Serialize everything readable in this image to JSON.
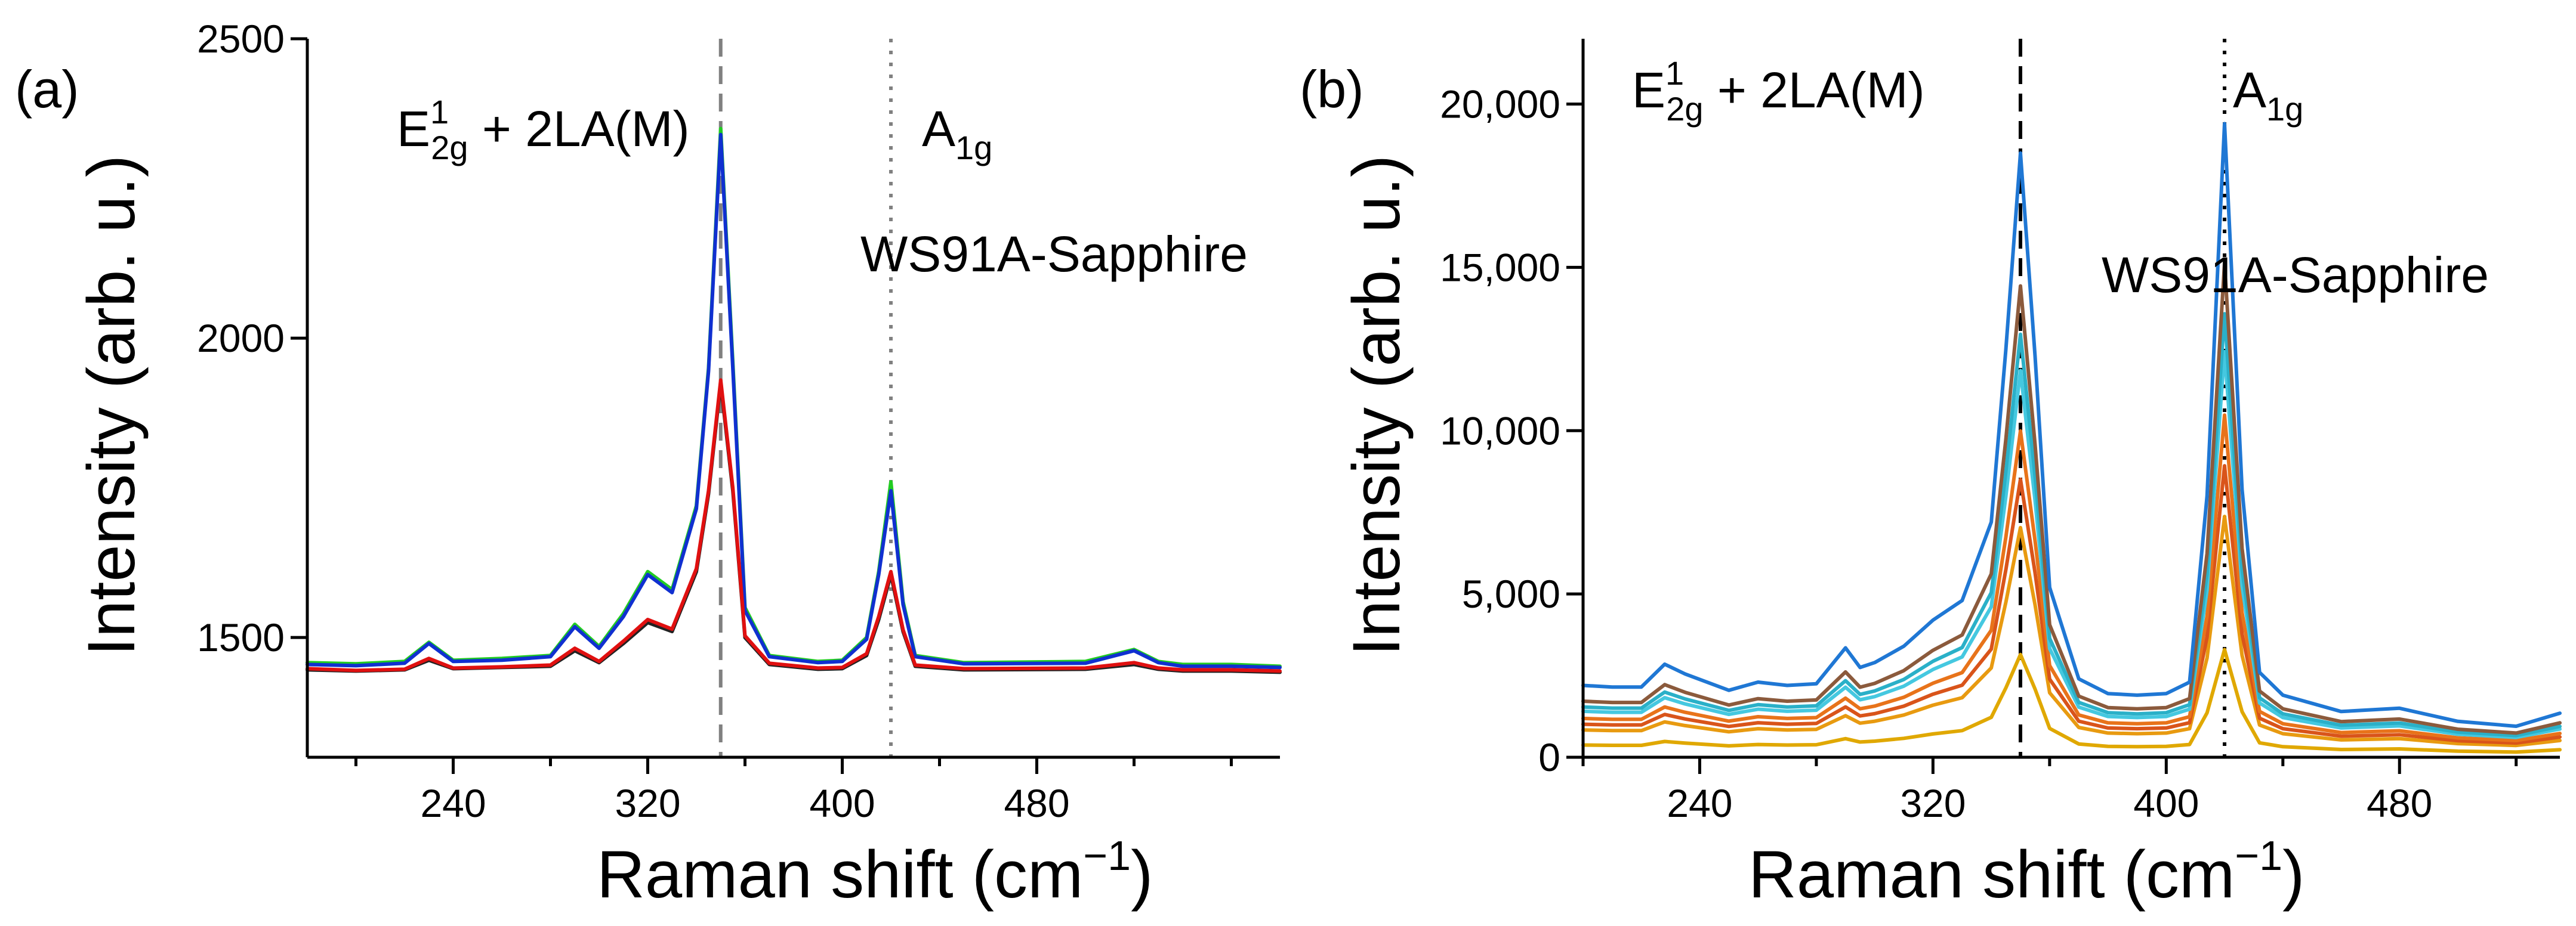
{
  "chart_data": [
    {
      "type": "line",
      "panel_label": "(a)",
      "xlabel_main": "Raman shift (cm",
      "xlabel_sup": "−1",
      "xlabel_close": ")",
      "ylabel": "Intensity (arb. u.)",
      "xlim": [
        180,
        580
      ],
      "ylim": [
        1300,
        2500
      ],
      "xticks": [
        240,
        320,
        400,
        480
      ],
      "xtick_labels": [
        "240",
        "320",
        "400",
        "480"
      ],
      "yticks": [
        1500,
        2000,
        2500
      ],
      "ytick_labels": [
        "1500",
        "2000",
        "2500"
      ],
      "annotations": {
        "e2g_main": "E",
        "e2g_sup": "1",
        "e2g_sub": "2g",
        "e2g_rest": " + 2LA(M)",
        "a1g_main": "A",
        "a1g_sub": "1g",
        "sample": "WS91A-Sapphire"
      },
      "vlines": [
        {
          "x": 350,
          "style": "dashed",
          "color": "#808080"
        },
        {
          "x": 420,
          "style": "dotted",
          "color": "#808080"
        }
      ],
      "baseline_x": [
        180,
        200,
        220,
        230,
        240,
        260,
        280,
        290,
        300,
        310,
        320,
        330,
        340,
        345,
        350,
        355,
        360,
        370,
        390,
        400,
        410,
        415,
        420,
        425,
        430,
        450,
        500,
        520,
        530,
        540,
        560,
        580
      ],
      "series": [
        {
          "name": "green",
          "color": "#22cc22",
          "values": [
            1458,
            1456,
            1460,
            1492,
            1462,
            1465,
            1470,
            1522,
            1485,
            1540,
            1610,
            1580,
            1720,
            1950,
            2350,
            1960,
            1550,
            1470,
            1460,
            1462,
            1500,
            1610,
            1760,
            1560,
            1470,
            1458,
            1460,
            1480,
            1460,
            1455,
            1455,
            1452
          ]
        },
        {
          "name": "blue",
          "color": "#1030d0",
          "values": [
            1455,
            1453,
            1457,
            1490,
            1460,
            1462,
            1468,
            1518,
            1482,
            1535,
            1605,
            1575,
            1715,
            1945,
            2340,
            1950,
            1545,
            1468,
            1458,
            1460,
            1497,
            1605,
            1745,
            1555,
            1468,
            1456,
            1457,
            1478,
            1458,
            1452,
            1452,
            1450
          ]
        },
        {
          "name": "black",
          "color": "#222222",
          "values": [
            1446,
            1444,
            1446,
            1462,
            1448,
            1450,
            1452,
            1478,
            1458,
            1490,
            1525,
            1510,
            1610,
            1740,
            1925,
            1745,
            1500,
            1455,
            1447,
            1448,
            1470,
            1530,
            1605,
            1510,
            1452,
            1446,
            1447,
            1455,
            1447,
            1444,
            1444,
            1442
          ]
        },
        {
          "name": "red",
          "color": "#e01010",
          "values": [
            1448,
            1445,
            1447,
            1465,
            1449,
            1451,
            1454,
            1482,
            1460,
            1494,
            1530,
            1514,
            1615,
            1745,
            1930,
            1750,
            1503,
            1457,
            1449,
            1450,
            1473,
            1535,
            1610,
            1513,
            1454,
            1448,
            1449,
            1458,
            1449,
            1446,
            1446,
            1444
          ]
        }
      ]
    },
    {
      "type": "line",
      "panel_label": "(b)",
      "xlabel_main": "Raman shift (cm",
      "xlabel_sup": "−1",
      "xlabel_close": ")",
      "ylabel": "Intensity (arb. u.)",
      "xlim": [
        200,
        535
      ],
      "ylim": [
        0,
        22000
      ],
      "xticks": [
        240,
        320,
        400,
        480
      ],
      "xtick_labels": [
        "240",
        "320",
        "400",
        "480"
      ],
      "yticks": [
        0,
        5000,
        10000,
        15000,
        20000
      ],
      "ytick_labels": [
        "0",
        "5,000",
        "10,000",
        "15,000",
        "20,000"
      ],
      "annotations": {
        "e2g_main": "E",
        "e2g_sup": "1",
        "e2g_sub": "2g",
        "e2g_rest": " + 2LA(M)",
        "a1g_main": "A",
        "a1g_sub": "1g",
        "sample": "WS91A-Sapphire"
      },
      "vlines": [
        {
          "x": 350,
          "style": "dashed",
          "color": "#000000"
        },
        {
          "x": 420,
          "style": "dotted",
          "color": "#000000"
        }
      ],
      "x": [
        200,
        210,
        220,
        228,
        235,
        250,
        260,
        270,
        280,
        290,
        295,
        300,
        310,
        320,
        330,
        340,
        345,
        350,
        355,
        360,
        370,
        380,
        390,
        400,
        408,
        414,
        420,
        426,
        432,
        440,
        460,
        480,
        500,
        520,
        535
      ],
      "series": [
        {
          "name": "blue",
          "color": "#1f77d4",
          "shape": [
            2200,
            2150,
            2150,
            2850,
            2550,
            2050,
            2300,
            2200,
            2250,
            3350,
            2750,
            2900,
            3400,
            4200,
            4800,
            7200,
            12500,
            18500,
            12300,
            5200,
            2400,
            1950,
            1900,
            1950,
            2300,
            8000,
            19400,
            8200,
            2600,
            1900,
            1400,
            1500,
            1100,
            950,
            1350
          ]
        },
        {
          "name": "brown",
          "color": "#8b5a3c",
          "scale": 0.78,
          "offset": 0
        },
        {
          "name": "teal",
          "color": "#2ab0c8",
          "scale": 0.7,
          "offset": 0
        },
        {
          "name": "cyan",
          "color": "#45c8e0",
          "scale": 0.64,
          "offset": 0
        },
        {
          "name": "orange",
          "color": "#e8731a",
          "scale": 0.54,
          "offset": 0
        },
        {
          "name": "dark-orange",
          "color": "#d9541a",
          "scale": 0.46,
          "offset": 0
        },
        {
          "name": "amber",
          "color": "#e89a10",
          "scale": 0.38,
          "offset": 0
        },
        {
          "name": "gold",
          "color": "#e0a800",
          "scale": 0.17,
          "offset": 0
        }
      ]
    }
  ]
}
